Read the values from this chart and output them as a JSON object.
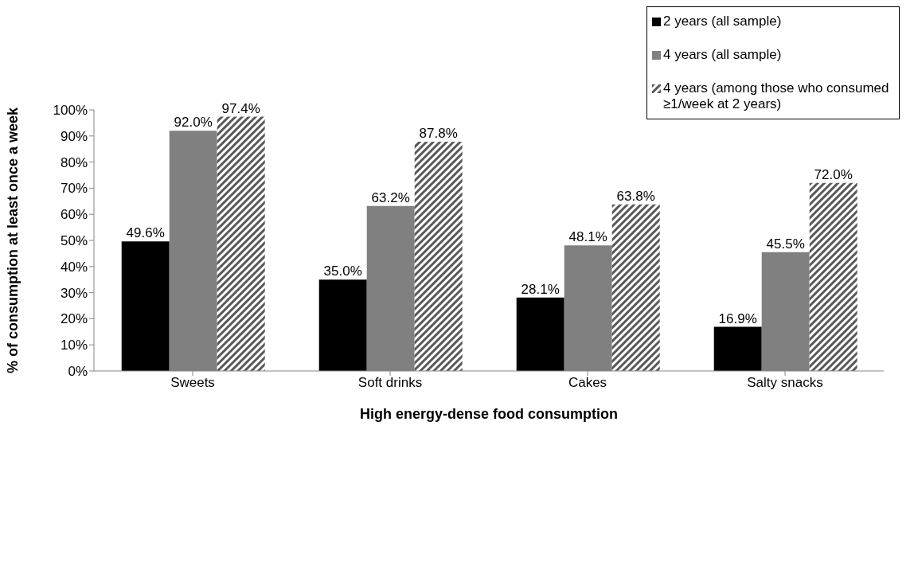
{
  "chart_data": {
    "type": "bar",
    "xlabel": "High energy-dense food consumption",
    "ylabel": "% of consumption at least once a week",
    "categories": [
      "Sweets",
      "Soft drinks",
      "Cakes",
      "Salty snacks"
    ],
    "series": [
      {
        "name": "2 years (all sample)",
        "color": "#000000",
        "values": [
          49.6,
          35.0,
          28.1,
          16.9
        ],
        "value_labels": [
          "49.6%",
          "35.0%",
          "28.1%",
          "16.9%"
        ]
      },
      {
        "name": "4 years (all sample)",
        "color": "#808080",
        "values": [
          92.0,
          63.2,
          48.1,
          45.5
        ],
        "value_labels": [
          "92.0%",
          "63.2%",
          "48.1%",
          "45.5%"
        ]
      },
      {
        "name": "4 years (among those who consumed ≥1/week at 2 years)",
        "color": "#595959",
        "values": [
          97.4,
          87.8,
          63.8,
          72.0
        ],
        "value_labels": [
          "97.4%",
          "87.8%",
          "63.8%",
          "72.0%"
        ]
      }
    ],
    "ylim": [
      0,
      100
    ],
    "yticks": [
      {
        "value": 0,
        "label": "0%"
      },
      {
        "value": 10,
        "label": "10%"
      },
      {
        "value": 20,
        "label": "20%"
      },
      {
        "value": 30,
        "label": "30%"
      },
      {
        "value": 40,
        "label": "40%"
      },
      {
        "value": 50,
        "label": "50%"
      },
      {
        "value": 60,
        "label": "60%"
      },
      {
        "value": 70,
        "label": "70%"
      },
      {
        "value": 80,
        "label": "80%"
      },
      {
        "value": 90,
        "label": "90%"
      },
      {
        "value": 100,
        "label": "100%"
      }
    ],
    "legend": "top right",
    "grid": false
  }
}
